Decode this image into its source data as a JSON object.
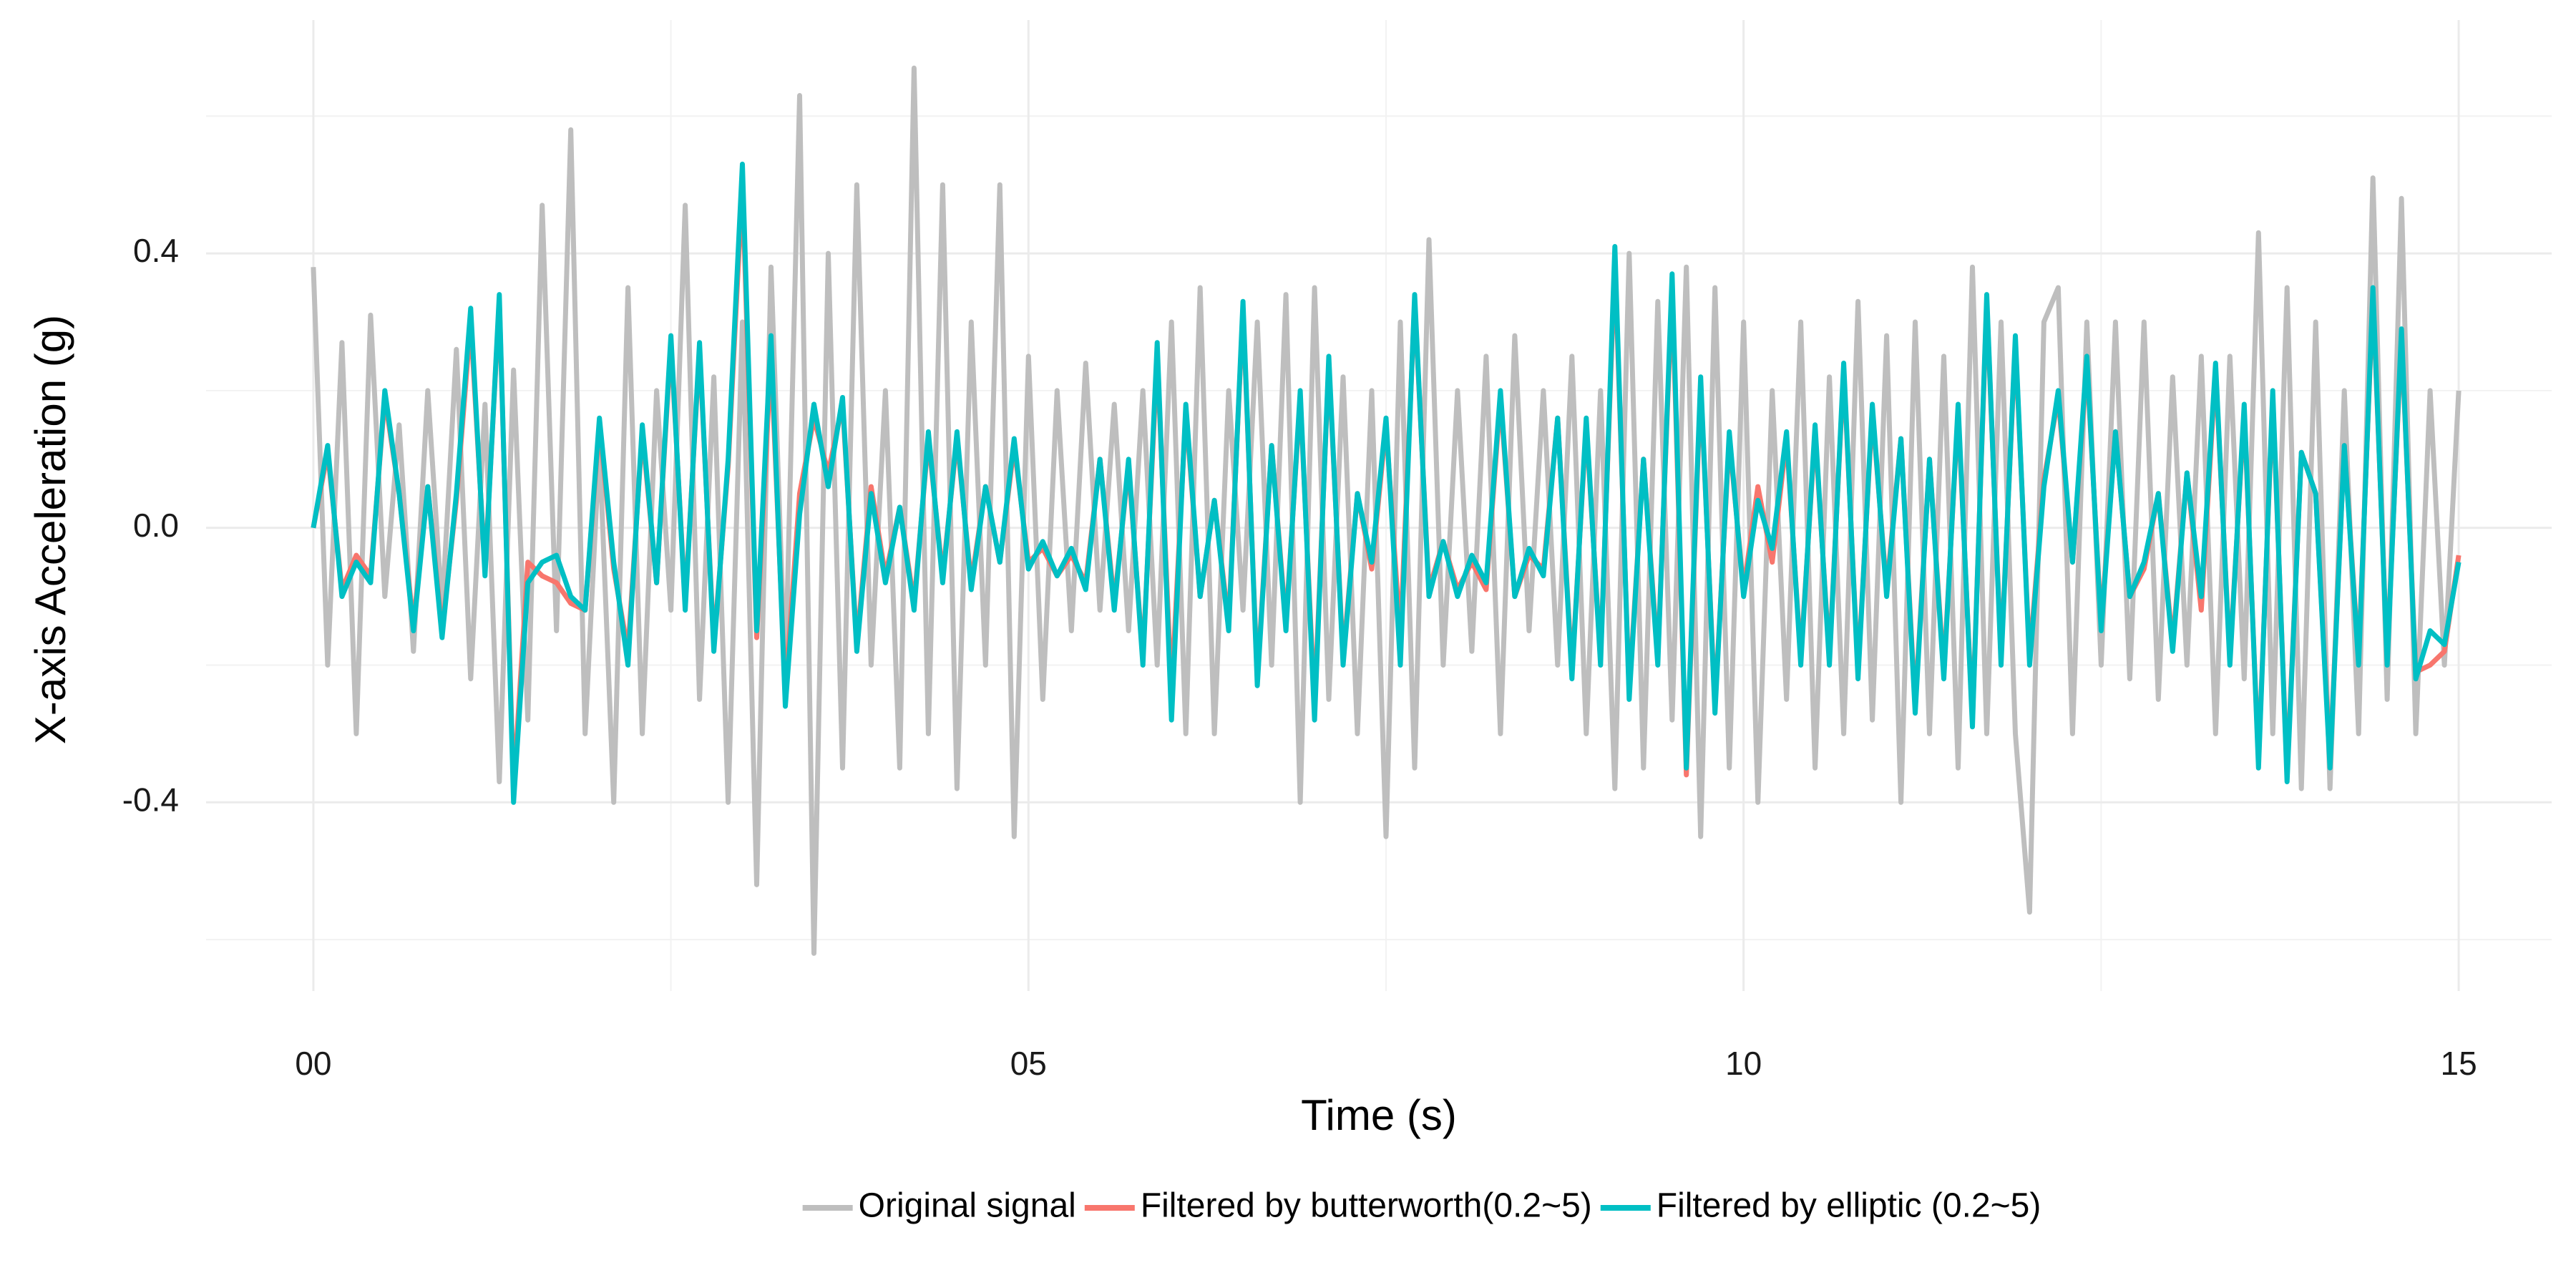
{
  "chart_data": {
    "type": "line",
    "x_label": "Time (s)",
    "y_label": "X-axis Acceleration (g)",
    "x": [
      0,
      0.1,
      0.2,
      0.3,
      0.4,
      0.5,
      0.6,
      0.7,
      0.8,
      0.9,
      1,
      1.1,
      1.2,
      1.3,
      1.4,
      1.5,
      1.6,
      1.7,
      1.8,
      1.9,
      2,
      2.1,
      2.2,
      2.3,
      2.4,
      2.5,
      2.6,
      2.7,
      2.8,
      2.9,
      3,
      3.1,
      3.2,
      3.3,
      3.4,
      3.5,
      3.6,
      3.7,
      3.8,
      3.9,
      4,
      4.1,
      4.2,
      4.3,
      4.4,
      4.5,
      4.6,
      4.7,
      4.8,
      4.9,
      5,
      5.1,
      5.2,
      5.3,
      5.4,
      5.5,
      5.6,
      5.7,
      5.8,
      5.9,
      6,
      6.1,
      6.2,
      6.3,
      6.4,
      6.5,
      6.6,
      6.7,
      6.8,
      6.9,
      7,
      7.1,
      7.2,
      7.3,
      7.4,
      7.5,
      7.6,
      7.7,
      7.8,
      7.9,
      8,
      8.1,
      8.2,
      8.3,
      8.4,
      8.5,
      8.6,
      8.7,
      8.8,
      8.9,
      9,
      9.1,
      9.2,
      9.3,
      9.4,
      9.5,
      9.6,
      9.7,
      9.8,
      9.9,
      10,
      10.1,
      10.2,
      10.3,
      10.4,
      10.5,
      10.6,
      10.7,
      10.8,
      10.9,
      11,
      11.1,
      11.2,
      11.3,
      11.4,
      11.5,
      11.6,
      11.7,
      11.8,
      11.9,
      12,
      12.1,
      12.2,
      12.3,
      12.4,
      12.5,
      12.6,
      12.7,
      12.8,
      12.9,
      13,
      13.1,
      13.2,
      13.3,
      13.4,
      13.5,
      13.6,
      13.7,
      13.8,
      13.9,
      14,
      14.1,
      14.2,
      14.3,
      14.4,
      14.5,
      14.6,
      14.7,
      14.8,
      14.9,
      15
    ],
    "series": [
      {
        "name": "Original signal",
        "color": "#bebebe",
        "values": [
          0.38,
          -0.2,
          0.27,
          -0.3,
          0.31,
          -0.1,
          0.15,
          -0.18,
          0.2,
          -0.12,
          0.26,
          -0.22,
          0.18,
          -0.37,
          0.23,
          -0.28,
          0.47,
          -0.15,
          0.58,
          -0.3,
          0.12,
          -0.4,
          0.35,
          -0.3,
          0.2,
          -0.12,
          0.47,
          -0.25,
          0.22,
          -0.4,
          0.3,
          -0.52,
          0.38,
          -0.22,
          0.63,
          -0.62,
          0.4,
          -0.35,
          0.5,
          -0.2,
          0.2,
          -0.35,
          0.67,
          -0.3,
          0.5,
          -0.38,
          0.3,
          -0.2,
          0.5,
          -0.45,
          0.25,
          -0.25,
          0.2,
          -0.15,
          0.24,
          -0.12,
          0.18,
          -0.15,
          0.2,
          -0.2,
          0.3,
          -0.3,
          0.35,
          -0.3,
          0.2,
          -0.12,
          0.3,
          -0.2,
          0.34,
          -0.4,
          0.35,
          -0.25,
          0.22,
          -0.3,
          0.2,
          -0.45,
          0.3,
          -0.35,
          0.42,
          -0.2,
          0.2,
          -0.18,
          0.25,
          -0.3,
          0.28,
          -0.15,
          0.2,
          -0.2,
          0.25,
          -0.3,
          0.2,
          -0.38,
          0.4,
          -0.35,
          0.33,
          -0.28,
          0.38,
          -0.45,
          0.35,
          -0.35,
          0.3,
          -0.4,
          0.2,
          -0.25,
          0.3,
          -0.35,
          0.22,
          -0.3,
          0.33,
          -0.28,
          0.28,
          -0.4,
          0.3,
          -0.3,
          0.25,
          -0.35,
          0.38,
          -0.3,
          0.3,
          -0.3,
          -0.56,
          0.3,
          0.35,
          -0.3,
          0.3,
          -0.2,
          0.3,
          -0.22,
          0.3,
          -0.25,
          0.22,
          -0.2,
          0.25,
          -0.3,
          0.25,
          -0.22,
          0.43,
          -0.3,
          0.35,
          -0.38,
          0.3,
          -0.38,
          0.2,
          -0.3,
          0.51,
          -0.25,
          0.48,
          -0.3,
          0.2,
          -0.2,
          0.2
        ]
      },
      {
        "name": "Filtered by butterworth(0.2~5)",
        "color": "#f8766d",
        "values": [
          0.0,
          0.11,
          -0.09,
          -0.04,
          -0.07,
          0.19,
          0.05,
          -0.14,
          0.06,
          -0.15,
          0.04,
          0.3,
          -0.06,
          0.33,
          -0.38,
          -0.05,
          -0.07,
          -0.08,
          -0.11,
          -0.12,
          0.15,
          -0.06,
          -0.18,
          0.14,
          -0.08,
          0.27,
          -0.11,
          0.26,
          -0.17,
          0.09,
          0.5,
          -0.16,
          0.25,
          -0.24,
          0.05,
          0.16,
          0.08,
          0.18,
          -0.17,
          0.06,
          -0.07,
          0.03,
          -0.11,
          0.13,
          -0.07,
          0.13,
          -0.08,
          0.06,
          -0.05,
          0.12,
          -0.05,
          -0.03,
          -0.07,
          -0.04,
          -0.08,
          0.1,
          -0.11,
          0.09,
          -0.19,
          0.25,
          -0.24,
          0.17,
          -0.1,
          0.04,
          -0.14,
          0.32,
          -0.22,
          0.12,
          -0.14,
          0.19,
          -0.26,
          0.24,
          -0.19,
          0.05,
          -0.06,
          0.15,
          -0.16,
          0.33,
          -0.09,
          -0.02,
          -0.09,
          -0.05,
          -0.09,
          0.19,
          -0.1,
          -0.04,
          -0.06,
          0.16,
          -0.21,
          0.15,
          -0.19,
          0.39,
          -0.24,
          0.1,
          -0.19,
          0.35,
          -0.36,
          0.21,
          -0.26,
          0.13,
          -0.09,
          0.06,
          -0.05,
          0.13,
          -0.19,
          0.14,
          -0.19,
          0.23,
          -0.21,
          0.17,
          -0.09,
          0.13,
          -0.26,
          0.1,
          -0.21,
          0.17,
          -0.28,
          0.33,
          -0.19,
          0.27,
          -0.19,
          0.07,
          0.19,
          -0.05,
          0.24,
          -0.14,
          0.14,
          -0.1,
          -0.06,
          0.05,
          -0.17,
          0.08,
          -0.12,
          0.23,
          -0.19,
          0.17,
          -0.34,
          0.19,
          -0.36,
          0.11,
          0.05,
          -0.34,
          0.12,
          -0.19,
          0.34,
          -0.19,
          0.28,
          -0.21,
          -0.2,
          -0.18,
          -0.04
        ]
      },
      {
        "name": "Filtered by elliptic (0.2~5)",
        "color": "#00bfc4",
        "values": [
          0.0,
          0.12,
          -0.1,
          -0.05,
          -0.08,
          0.2,
          0.05,
          -0.15,
          0.06,
          -0.16,
          0.05,
          0.32,
          -0.07,
          0.34,
          -0.4,
          -0.08,
          -0.05,
          -0.04,
          -0.1,
          -0.12,
          0.16,
          -0.05,
          -0.2,
          0.15,
          -0.08,
          0.28,
          -0.12,
          0.27,
          -0.18,
          0.1,
          0.53,
          -0.15,
          0.28,
          -0.26,
          0.02,
          0.18,
          0.06,
          0.19,
          -0.18,
          0.05,
          -0.08,
          0.03,
          -0.12,
          0.14,
          -0.08,
          0.14,
          -0.09,
          0.06,
          -0.05,
          0.13,
          -0.06,
          -0.02,
          -0.07,
          -0.03,
          -0.09,
          0.1,
          -0.12,
          0.1,
          -0.2,
          0.27,
          -0.28,
          0.18,
          -0.1,
          0.04,
          -0.15,
          0.33,
          -0.23,
          0.12,
          -0.15,
          0.2,
          -0.28,
          0.25,
          -0.2,
          0.05,
          -0.05,
          0.16,
          -0.2,
          0.34,
          -0.1,
          -0.02,
          -0.1,
          -0.04,
          -0.08,
          0.2,
          -0.1,
          -0.03,
          -0.07,
          0.16,
          -0.22,
          0.16,
          -0.2,
          0.41,
          -0.25,
          0.1,
          -0.2,
          0.37,
          -0.35,
          0.22,
          -0.27,
          0.14,
          -0.1,
          0.04,
          -0.03,
          0.14,
          -0.2,
          0.15,
          -0.2,
          0.24,
          -0.22,
          0.18,
          -0.1,
          0.13,
          -0.27,
          0.1,
          -0.22,
          0.18,
          -0.29,
          0.34,
          -0.2,
          0.28,
          -0.2,
          0.06,
          0.2,
          -0.05,
          0.25,
          -0.15,
          0.14,
          -0.1,
          -0.05,
          0.05,
          -0.18,
          0.08,
          -0.1,
          0.24,
          -0.2,
          0.18,
          -0.35,
          0.2,
          -0.37,
          0.11,
          0.05,
          -0.35,
          0.12,
          -0.2,
          0.35,
          -0.2,
          0.29,
          -0.22,
          -0.15,
          -0.17,
          -0.05
        ]
      }
    ],
    "xlim": [
      -0.75,
      15.65
    ],
    "ylim": [
      -0.675,
      0.74
    ],
    "xticks": [
      {
        "value": 0,
        "label": "00"
      },
      {
        "value": 5,
        "label": "05"
      },
      10,
      15
    ],
    "yticks": [
      -0.4,
      {
        "value": 0,
        "label": "0.0"
      },
      0.4
    ],
    "x_minor_ticks": [
      2.5,
      7.5,
      12.5
    ],
    "y_minor_ticks": [
      -0.6,
      -0.2,
      0.2,
      0.6
    ],
    "grid": true,
    "legend_position": "bottom"
  }
}
